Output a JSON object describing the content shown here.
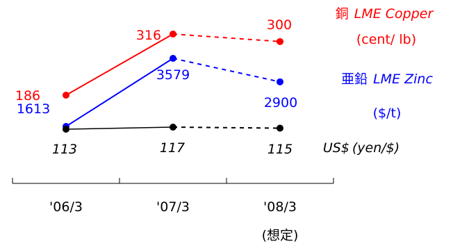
{
  "colors": {
    "copper": "#ff0000",
    "zinc": "#0000ff",
    "usd": "#000000"
  },
  "chart_data": {
    "type": "line",
    "categories": [
      "'06/3",
      "'07/3",
      "'08/3"
    ],
    "category_note": "(想定)",
    "series": [
      {
        "key": "copper",
        "name_ja": "銅",
        "name_en": "LME Copper",
        "unit": "(cent/ lb)",
        "values": [
          186,
          316,
          300
        ],
        "labels": [
          "186",
          "316",
          "300"
        ]
      },
      {
        "key": "zinc",
        "name_ja": "亜鉛",
        "name_en": "LME Zinc",
        "unit": "($/t)",
        "values": [
          1613,
          3579,
          2900
        ],
        "labels": [
          "1613",
          "3579",
          "2900"
        ]
      },
      {
        "key": "usd",
        "name_ja": "",
        "name_en": "US$",
        "unit": "(yen/$)",
        "values": [
          113,
          117,
          115
        ],
        "labels": [
          "113",
          "117",
          "115"
        ]
      }
    ],
    "style": {
      "actual_segment": "solid",
      "forecast_segment": "dashed"
    }
  }
}
